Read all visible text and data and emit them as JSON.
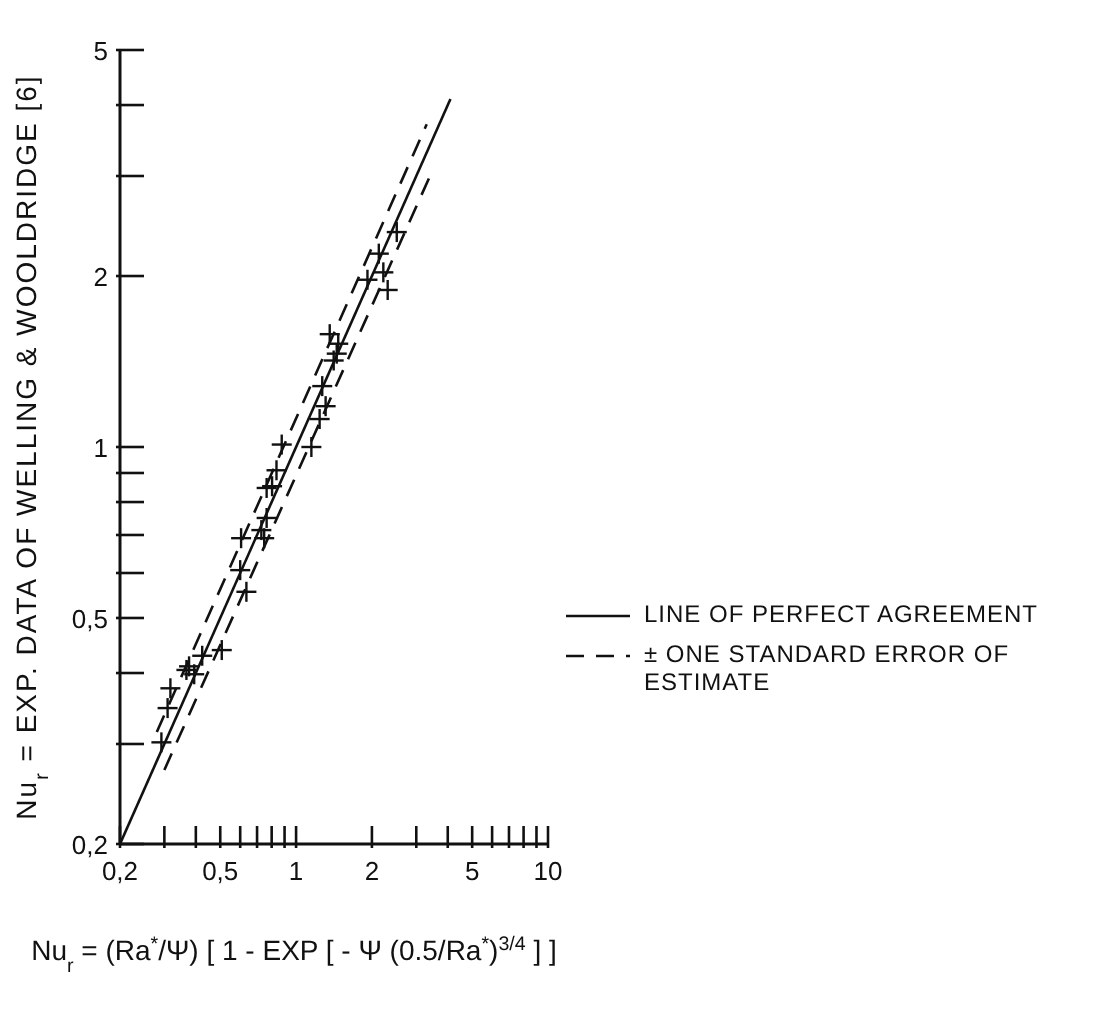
{
  "chart_data": {
    "type": "scatter",
    "xlabel": "Nu$_{r}$ = (Ra$^{*}$/Ψ) [ 1 - EXP [ - Ψ (0.5/Ra$^{*}$)$^{3/4}$ ] ]",
    "ylabel": "Nu$_{r}$ = EXP. DATA OF WELLING & WOOLDRIDGE [6]",
    "log": "xy",
    "xlim": [
      0.2,
      10
    ],
    "ylim": [
      0.2,
      5
    ],
    "xticks": [
      {
        "value": 0.2,
        "label": "0,2"
      },
      {
        "value": 0.3,
        "label": null
      },
      {
        "value": 0.4,
        "label": null
      },
      {
        "value": 0.5,
        "label": "0,5"
      },
      {
        "value": 0.6,
        "label": null
      },
      {
        "value": 0.7,
        "label": null
      },
      {
        "value": 0.8,
        "label": null
      },
      {
        "value": 0.9,
        "label": null
      },
      1,
      2,
      {
        "value": 3,
        "label": null
      },
      {
        "value": 4,
        "label": null
      },
      5,
      {
        "value": 6,
        "label": null
      },
      {
        "value": 7,
        "label": null
      },
      {
        "value": 8,
        "label": null
      },
      {
        "value": 9,
        "label": null
      },
      10
    ],
    "yticks": [
      {
        "value": 0.2,
        "label": "0,2"
      },
      {
        "value": 0.3,
        "label": null
      },
      {
        "value": 0.4,
        "label": null
      },
      {
        "value": 0.5,
        "label": "0,5"
      },
      {
        "value": 0.6,
        "label": null
      },
      {
        "value": 0.7,
        "label": null
      },
      {
        "value": 0.8,
        "label": null
      },
      {
        "value": 0.9,
        "label": null
      },
      1,
      2,
      {
        "value": 3,
        "label": null
      },
      {
        "value": 4,
        "label": null
      },
      5
    ],
    "grid": false,
    "legend": "right",
    "series": [
      {
        "name": "LINE OF PERFECT AGREEMENT",
        "type": "line",
        "line_style": "solid",
        "color": "#111111",
        "x": [
          0.2,
          4.1
        ],
        "values": [
          0.2,
          4.1
        ]
      },
      {
        "name": "± ONE STANDARD ERROR OF ESTIMATE",
        "type": "line",
        "line_style": "dashed",
        "color": "#111111",
        "x": [
          0.28,
          3.3
        ],
        "values": [
          0.315,
          3.7
        ]
      },
      {
        "type": "line",
        "line_style": "dashed",
        "color": "#111111",
        "x": [
          0.3,
          3.4
        ],
        "values": [
          0.27,
          3.0
        ]
      },
      {
        "marker": "cross",
        "color": "#111111",
        "x": [
          0.292,
          0.309,
          0.317,
          0.367,
          0.376,
          0.394,
          0.424,
          0.507,
          0.605,
          0.6,
          0.635,
          0.728,
          0.747,
          0.764,
          0.764,
          0.803,
          0.836,
          0.877,
          1.15,
          1.24,
          1.31,
          1.27,
          1.41,
          1.45,
          1.47,
          1.36,
          1.92,
          2.13,
          2.22,
          2.31,
          2.51
        ],
        "values": [
          0.302,
          0.347,
          0.376,
          0.405,
          0.411,
          0.398,
          0.429,
          0.439,
          0.691,
          0.607,
          0.556,
          0.714,
          0.691,
          0.75,
          0.847,
          0.853,
          0.91,
          1.01,
          1.0,
          1.12,
          1.18,
          1.28,
          1.42,
          1.46,
          1.52,
          1.58,
          1.97,
          2.19,
          2.03,
          1.89,
          2.39
        ]
      }
    ]
  }
}
